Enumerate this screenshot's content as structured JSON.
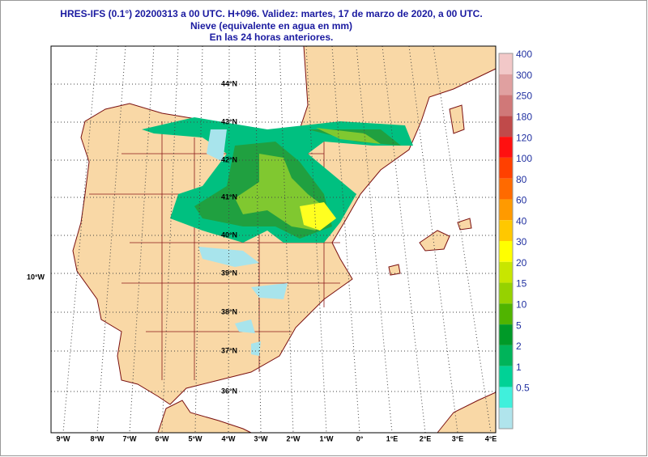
{
  "header": {
    "lines": [
      "HRES-IFS (0.1°) 20200313 a 00 UTC.  H+096. Validez: martes, 17 de marzo de 2020,  a  00 UTC.",
      "Nieve (equivalente en agua en mm)",
      "En las 24 horas anteriores."
    ]
  },
  "map": {
    "lon_labels": [
      "9°W",
      "8°W",
      "7°W",
      "6°W",
      "5°W",
      "4°W",
      "3°W",
      "2°W",
      "1°W",
      "0°",
      "1°E",
      "2°E",
      "3°E",
      "4°E"
    ],
    "lat_labels": [
      "44°N",
      "43°N",
      "42°N",
      "41°N",
      "40°N",
      "39°N",
      "38°N",
      "37°N",
      "36°N"
    ],
    "side_label": "10°W"
  },
  "legend": {
    "labels": [
      "400",
      "300",
      "250",
      "180",
      "120",
      "100",
      "80",
      "60",
      "40",
      "30",
      "20",
      "15",
      "10",
      "5",
      "2",
      "1",
      "0.5"
    ],
    "colors": [
      "#f2c8c8",
      "#e0a0a0",
      "#d07878",
      "#c04a4a",
      "#ff1010",
      "#ff4000",
      "#ff6a00",
      "#ff9a00",
      "#ffc800",
      "#ffff00",
      "#c8e600",
      "#96d200",
      "#50b400",
      "#009a28",
      "#00b45a",
      "#00d296",
      "#40f0dc",
      "#b0e4ec"
    ]
  }
}
